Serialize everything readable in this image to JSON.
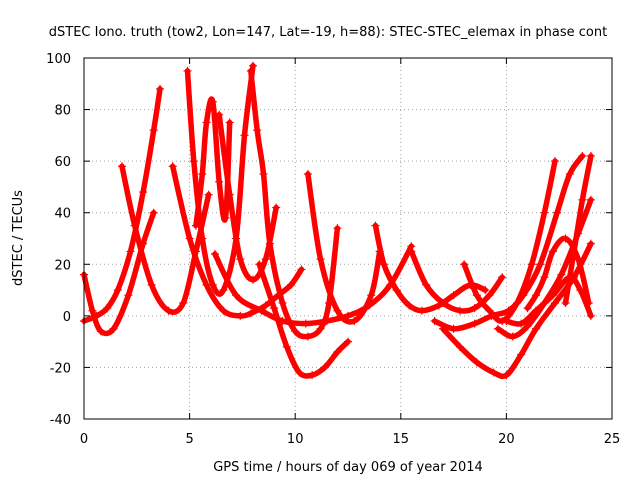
{
  "chart_data": {
    "type": "scatter",
    "title": "dSTEC Iono. truth (tow2, Lon=147, Lat=-19, h=88): STEC-STEC_elemax in phase cont",
    "xlabel": "GPS time / hours of day 069 of year 2014",
    "ylabel": "dSTEC  / TECUs",
    "xlim": [
      0,
      25
    ],
    "ylim": [
      -40,
      100
    ],
    "xticks": [
      "0",
      "5",
      "10",
      "15",
      "20",
      "25"
    ],
    "yticks": [
      "-40",
      "-20",
      "0",
      "20",
      "40",
      "60",
      "80",
      "100"
    ],
    "grid": true,
    "marker": "plus",
    "series_color": "#ff0000",
    "series": [
      {
        "x": [
          0.0,
          0.6,
          1.1,
          1.6,
          2.2,
          2.8,
          3.3,
          3.6
        ],
        "y": [
          -2,
          0,
          3,
          10,
          25,
          48,
          72,
          88
        ]
      },
      {
        "x": [
          1.8,
          2.4,
          3.2,
          4.0,
          4.7,
          5.3,
          5.9
        ],
        "y": [
          58,
          35,
          12,
          2,
          5,
          25,
          47
        ]
      },
      {
        "x": [
          0.0,
          0.4,
          0.8,
          1.4,
          2.1,
          2.8,
          3.3
        ],
        "y": [
          16,
          2,
          -6,
          -5,
          8,
          28,
          40
        ]
      },
      {
        "x": [
          4.2,
          5.0,
          5.8,
          6.6,
          7.4,
          7.9,
          8.6,
          9.2,
          9.8,
          10.3
        ],
        "y": [
          58,
          30,
          12,
          2,
          0,
          1,
          4,
          8,
          12,
          18
        ]
      },
      {
        "x": [
          4.9,
          5.2,
          5.6,
          6.1,
          6.6,
          7.2,
          7.6,
          8.0
        ],
        "y": [
          95,
          60,
          30,
          12,
          10,
          30,
          70,
          97
        ]
      },
      {
        "x": [
          5.3,
          5.6,
          5.8,
          6.1,
          6.4,
          6.7,
          6.9
        ],
        "y": [
          35,
          55,
          75,
          83,
          52,
          38,
          75
        ]
      },
      {
        "x": [
          6.4,
          6.9,
          7.4,
          8.0,
          8.6,
          9.1
        ],
        "y": [
          78,
          47,
          22,
          14,
          22,
          42
        ]
      },
      {
        "x": [
          7.9,
          8.2,
          8.5,
          8.8,
          9.4,
          10.0,
          10.6,
          11.2,
          11.6,
          12.0
        ],
        "y": [
          95,
          72,
          55,
          28,
          5,
          -6,
          -8,
          -5,
          5,
          34
        ]
      },
      {
        "x": [
          8.3,
          9.0,
          9.6,
          10.2,
          10.8,
          11.4,
          12.0,
          12.5
        ],
        "y": [
          20,
          3,
          -12,
          -22,
          -23,
          -20,
          -14,
          -10
        ]
      },
      {
        "x": [
          10.6,
          11.2,
          12.0,
          12.8,
          13.6,
          14.0
        ],
        "y": [
          55,
          22,
          2,
          -2,
          8,
          25
        ]
      },
      {
        "x": [
          6.2,
          7.2,
          8.4,
          9.4,
          10.5,
          11.5,
          12.5,
          13.5,
          14.5,
          15.5
        ],
        "y": [
          24,
          8,
          2,
          -2,
          -3,
          -2,
          0,
          4,
          12,
          27
        ]
      },
      {
        "x": [
          13.8,
          14.2,
          14.8,
          15.4,
          16.0,
          16.8,
          17.5,
          18.3,
          19.0
        ],
        "y": [
          35,
          20,
          10,
          4,
          2,
          4,
          8,
          12,
          10
        ]
      },
      {
        "x": [
          15.5,
          16.2,
          17.0,
          17.8,
          18.5,
          19.2,
          19.8
        ],
        "y": [
          25,
          12,
          5,
          2,
          3,
          8,
          15
        ]
      },
      {
        "x": [
          18.0,
          18.6,
          19.2,
          19.8,
          20.5,
          21.2,
          21.8,
          22.3
        ],
        "y": [
          20,
          8,
          2,
          -2,
          5,
          20,
          40,
          60
        ]
      },
      {
        "x": [
          16.6,
          17.5,
          18.5,
          19.3,
          20.1,
          20.8,
          21.6,
          22.4,
          23.0,
          23.6
        ],
        "y": [
          -2,
          -5,
          -3,
          0,
          2,
          8,
          20,
          40,
          55,
          62
        ]
      },
      {
        "x": [
          17.0,
          17.8,
          18.6,
          19.4,
          20.0,
          20.7,
          21.4,
          22.3,
          23.2,
          24.0
        ],
        "y": [
          -5,
          -12,
          -18,
          -22,
          -23,
          -15,
          -5,
          5,
          15,
          28
        ]
      },
      {
        "x": [
          19.6,
          20.3,
          21.0,
          21.8,
          22.6,
          23.4,
          24.0
        ],
        "y": [
          -5,
          -8,
          -4,
          5,
          16,
          32,
          45
        ]
      },
      {
        "x": [
          20.0,
          20.7,
          21.4,
          22.2,
          23.0,
          23.5,
          24.0
        ],
        "y": [
          -2,
          -3,
          2,
          8,
          15,
          10,
          0
        ]
      },
      {
        "x": [
          22.8,
          23.2,
          23.6,
          24.0
        ],
        "y": [
          5,
          25,
          45,
          62
        ]
      },
      {
        "x": [
          21.0,
          21.4,
          21.8,
          22.2,
          22.8,
          23.4,
          23.9
        ],
        "y": [
          3,
          8,
          15,
          25,
          30,
          22,
          5
        ]
      }
    ]
  }
}
